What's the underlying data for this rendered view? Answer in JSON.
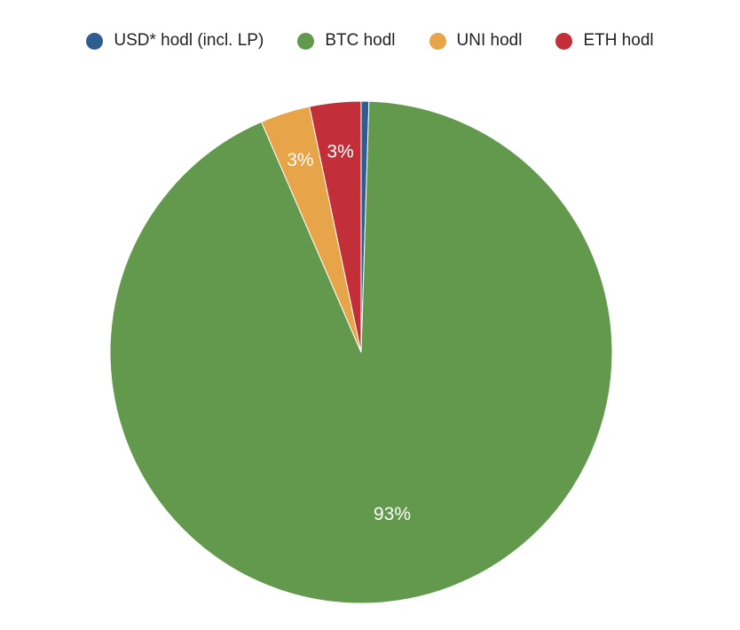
{
  "chart_data": {
    "type": "pie",
    "title": "",
    "legend_position": "top",
    "start_angle_deg": 0,
    "direction": "clockwise",
    "slices": [
      {
        "name": "USD* hodl (incl. LP)",
        "value": 0.5,
        "label": "",
        "color": "#2f5d8f"
      },
      {
        "name": "BTC hodl",
        "value": 93.0,
        "label": "93%",
        "color": "#62994d"
      },
      {
        "name": "UNI hodl",
        "value": 3.2,
        "label": "3%",
        "color": "#e7a449"
      },
      {
        "name": "ETH hodl",
        "value": 3.3,
        "label": "3%",
        "color": "#c22f39"
      }
    ]
  }
}
